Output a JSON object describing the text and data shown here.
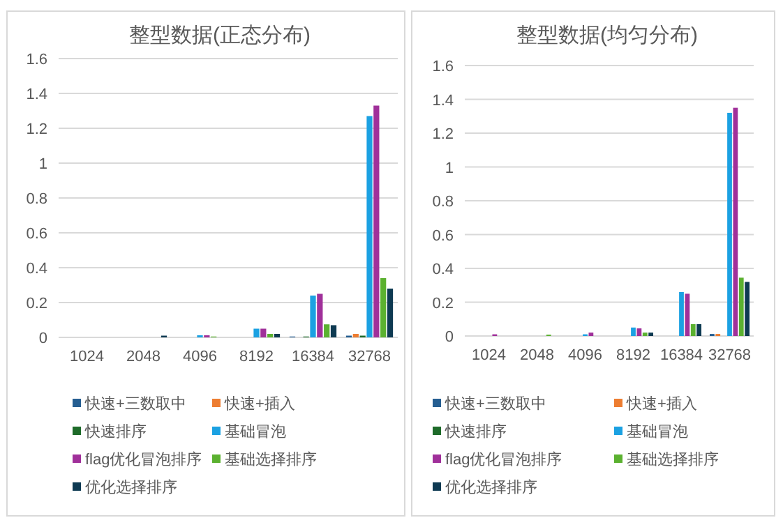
{
  "chart_data": [
    {
      "type": "bar",
      "title": "整型数据(正态分布)",
      "categories": [
        "1024",
        "2048",
        "4096",
        "8192",
        "16384",
        "32768"
      ],
      "ylim": [
        0,
        1.6
      ],
      "yticks": [
        0,
        0.2,
        0.4,
        0.6,
        0.8,
        1,
        1.2,
        1.4,
        1.6
      ],
      "grid": "y",
      "legend": "bottom",
      "series": [
        {
          "name": "快速+三数取中",
          "color": "#255e91",
          "values": [
            0,
            0,
            0,
            0,
            0.005,
            0.01
          ]
        },
        {
          "name": "快速+插入",
          "color": "#ed7d31",
          "values": [
            0,
            0,
            0,
            0,
            0,
            0.02
          ]
        },
        {
          "name": "快速排序",
          "color": "#1e6b2a",
          "values": [
            0,
            0,
            0,
            0,
            0.005,
            0.01
          ]
        },
        {
          "name": "基础冒泡",
          "color": "#1ba1e2",
          "values": [
            0,
            0,
            0.012,
            0.05,
            0.24,
            1.27
          ]
        },
        {
          "name": "flag优化冒泡排序",
          "color": "#a0309a",
          "values": [
            0,
            0,
            0.012,
            0.05,
            0.25,
            1.33
          ]
        },
        {
          "name": "基础选择排序",
          "color": "#5bb130",
          "values": [
            0,
            0,
            0.005,
            0.02,
            0.075,
            0.34
          ]
        },
        {
          "name": "优化选择排序",
          "color": "#0e3a52",
          "values": [
            0,
            0.01,
            0,
            0.02,
            0.07,
            0.28
          ]
        }
      ]
    },
    {
      "type": "bar",
      "title": "整型数据(均匀分布)",
      "categories": [
        "1024",
        "2048",
        "4096",
        "8192",
        "16384",
        "32768"
      ],
      "ylim": [
        0,
        1.6
      ],
      "yticks": [
        0,
        0.2,
        0.4,
        0.6,
        0.8,
        1,
        1.2,
        1.4,
        1.6
      ],
      "grid": "y",
      "legend": "bottom",
      "series": [
        {
          "name": "快速+三数取中",
          "color": "#255e91",
          "values": [
            0,
            0,
            0,
            0,
            0,
            0.012
          ]
        },
        {
          "name": "快速+插入",
          "color": "#ed7d31",
          "values": [
            0,
            0,
            0,
            0,
            0,
            0.012
          ]
        },
        {
          "name": "快速排序",
          "color": "#1e6b2a",
          "values": [
            0,
            0,
            0,
            0,
            0,
            0
          ]
        },
        {
          "name": "基础冒泡",
          "color": "#1ba1e2",
          "values": [
            0,
            0,
            0.01,
            0.05,
            0.26,
            1.32
          ]
        },
        {
          "name": "flag优化冒泡排序",
          "color": "#a0309a",
          "values": [
            0.01,
            0,
            0.02,
            0.045,
            0.25,
            1.35
          ]
        },
        {
          "name": "基础选择排序",
          "color": "#5bb130",
          "values": [
            0,
            0.008,
            0,
            0.02,
            0.07,
            0.345
          ]
        },
        {
          "name": "优化选择排序",
          "color": "#0e3a52",
          "values": [
            0,
            0,
            0,
            0.02,
            0.07,
            0.32
          ]
        }
      ]
    }
  ]
}
